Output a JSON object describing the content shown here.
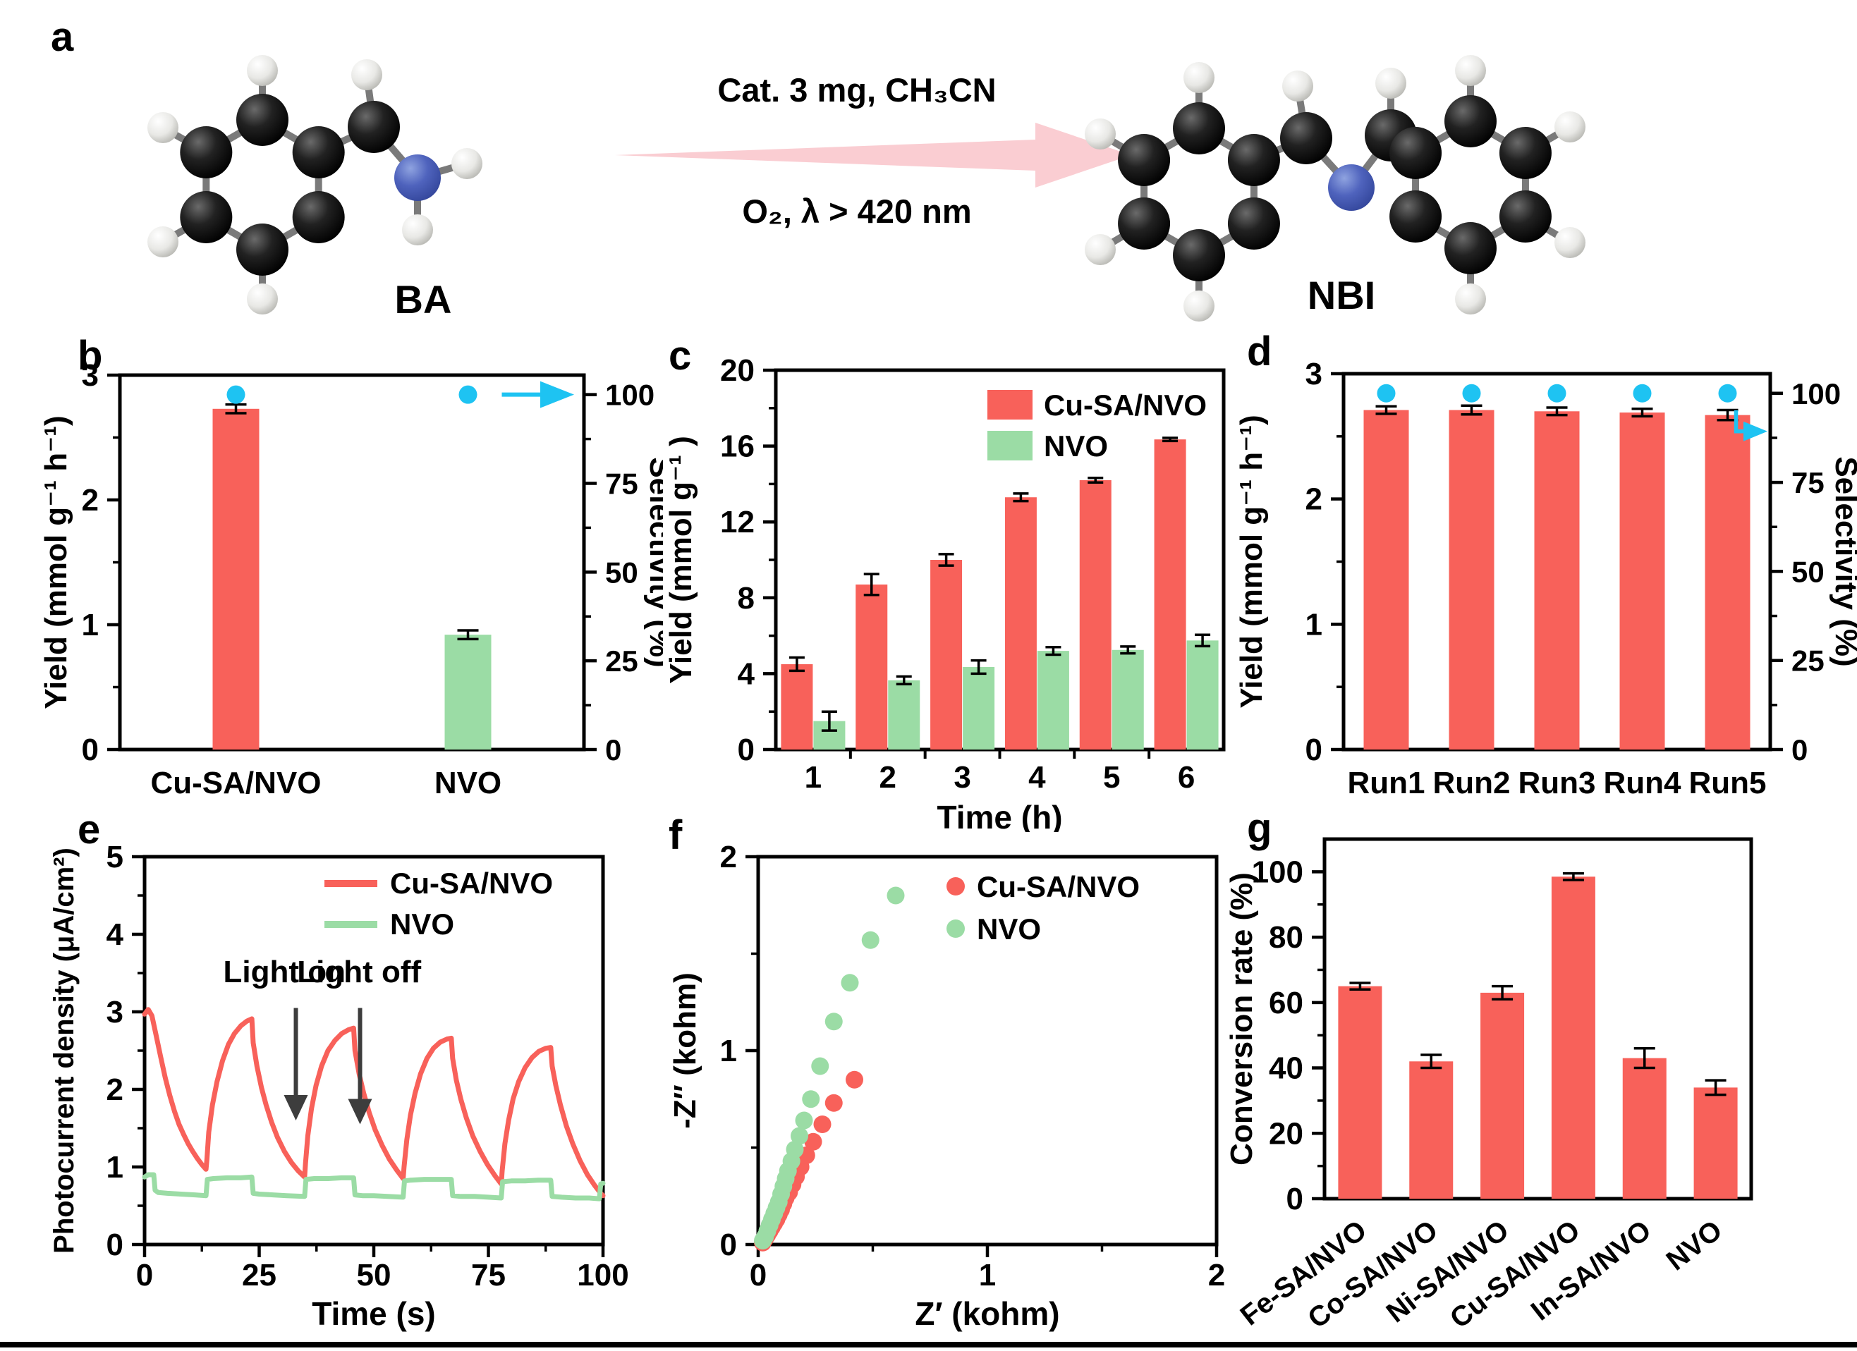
{
  "figure": {
    "panels": {
      "a": "a",
      "b": "b",
      "c": "c",
      "d": "d",
      "e": "e",
      "f": "f",
      "g": "g"
    },
    "panel_a": {
      "condition_top": "Cat. 3 mg,  CH₃CN",
      "condition_bottom": "O₂, λ > 420 nm",
      "reactant_label": "BA",
      "product_label": "NBI",
      "reactant_molecule": "benzylamine ball-and-stick model",
      "product_molecule": "N-benzylidenebenzylamine ball-and-stick model"
    }
  },
  "colors": {
    "red": "#F8615A",
    "green": "#9BDCA5",
    "cyan": "#1EC3F2",
    "arrow_pink": "#FACDD2",
    "annotation": "#3D3D3D",
    "bond": "#7A7A7A",
    "black": "#000000"
  },
  "chart_data": [
    {
      "panel": "b",
      "type": "bar",
      "dual_axis": true,
      "categories": [
        "Cu-SA/NVO",
        "NVO"
      ],
      "series": [
        {
          "name": "Yield",
          "values": [
            2.73,
            0.92
          ],
          "errors": [
            0.035,
            0.035
          ],
          "bar_colors": [
            "red",
            "green"
          ]
        },
        {
          "name": "Selectivity",
          "axis": "right",
          "marker": "circle",
          "color": "cyan",
          "values": [
            100,
            100
          ]
        }
      ],
      "ylabel": "Yield (mmol g⁻¹ h⁻¹)",
      "y2label": "Selectivity (%)",
      "ylim": [
        0,
        3
      ],
      "yticks": [
        0,
        1,
        2,
        3
      ],
      "y2lim": [
        0,
        105.5
      ],
      "y2ticks": [
        0,
        25,
        50,
        75,
        100
      ],
      "right_axis_arrow": "straight"
    },
    {
      "panel": "c",
      "type": "bar",
      "grouped": true,
      "categories": [
        "1",
        "2",
        "3",
        "4",
        "5",
        "6"
      ],
      "series": [
        {
          "name": "Cu-SA/NVO",
          "color": "red",
          "values": [
            4.5,
            8.7,
            10.0,
            13.3,
            14.2,
            16.35
          ],
          "errors": [
            0.35,
            0.55,
            0.3,
            0.2,
            0.12,
            0.08
          ]
        },
        {
          "name": "NVO",
          "color": "green",
          "values": [
            1.5,
            3.65,
            4.35,
            5.2,
            5.25,
            5.75
          ],
          "errors": [
            0.5,
            0.2,
            0.35,
            0.2,
            0.18,
            0.3
          ]
        }
      ],
      "xlabel": "Time (h)",
      "ylabel": "Yield (mmol g⁻¹ )",
      "ylim": [
        0,
        20
      ],
      "yticks": [
        0,
        4,
        8,
        12,
        16,
        20
      ],
      "legend_position": "top-right"
    },
    {
      "panel": "d",
      "type": "bar",
      "dual_axis": true,
      "categories": [
        "Run1",
        "Run2",
        "Run3",
        "Run4",
        "Run5"
      ],
      "series": [
        {
          "name": "Yield",
          "values": [
            2.71,
            2.71,
            2.7,
            2.69,
            2.67
          ],
          "errors": [
            0.03,
            0.035,
            0.03,
            0.03,
            0.04
          ],
          "bar_colors": [
            "red",
            "red",
            "red",
            "red",
            "red"
          ]
        },
        {
          "name": "Selectivity",
          "axis": "right",
          "marker": "circle",
          "color": "cyan",
          "values": [
            100,
            100,
            100,
            100,
            100
          ]
        }
      ],
      "ylabel": "Yield (mmol g⁻¹ h⁻¹)",
      "y2label": "Selectivity (%)",
      "ylim": [
        0,
        3
      ],
      "yticks": [
        0,
        1,
        2,
        3
      ],
      "y2lim": [
        0,
        105.5
      ],
      "y2ticks": [
        0,
        25,
        50,
        75,
        100
      ],
      "right_axis_arrow": "elbow"
    },
    {
      "panel": "e",
      "type": "line",
      "xlabel": "Time (s)",
      "ylabel": "Photocurrent density (μA/cm²)",
      "xlim": [
        0,
        100
      ],
      "ylim": [
        0,
        5
      ],
      "xticks": [
        0,
        25,
        50,
        75,
        100
      ],
      "yticks": [
        0,
        1,
        2,
        3,
        4,
        5
      ],
      "legend_position": "top-right",
      "annotations": [
        {
          "label": "Light on",
          "text_x": 30.5,
          "text_y": 3.38,
          "arrow_x": 33,
          "arrow_y_from": 3.05,
          "arrow_y_to": 1.6
        },
        {
          "label": "Light off",
          "text_x": 46.8,
          "text_y": 3.38,
          "arrow_x": 47,
          "arrow_y_from": 3.05,
          "arrow_y_to": 1.55
        }
      ],
      "series": [
        {
          "name": "Cu-SA/NVO",
          "color": "red",
          "points": [
            [
              0,
              2.97
            ],
            [
              0.8,
              3.03
            ],
            [
              1.6,
              2.95
            ],
            [
              2.5,
              2.7
            ],
            [
              3.5,
              2.42
            ],
            [
              4.5,
              2.15
            ],
            [
              5.5,
              1.92
            ],
            [
              6.5,
              1.72
            ],
            [
              7.5,
              1.55
            ],
            [
              8.5,
              1.42
            ],
            [
              9.5,
              1.3
            ],
            [
              10.5,
              1.2
            ],
            [
              11.5,
              1.11
            ],
            [
              12.5,
              1.03
            ],
            [
              13.4,
              0.97
            ],
            [
              13.6,
              1.1
            ],
            [
              14,
              1.45
            ],
            [
              14.8,
              1.8
            ],
            [
              15.8,
              2.1
            ],
            [
              17,
              2.37
            ],
            [
              18.3,
              2.58
            ],
            [
              19.6,
              2.72
            ],
            [
              21,
              2.82
            ],
            [
              22.3,
              2.88
            ],
            [
              23.4,
              2.91
            ],
            [
              23.7,
              2.6
            ],
            [
              24.5,
              2.3
            ],
            [
              25.5,
              2.02
            ],
            [
              26.5,
              1.8
            ],
            [
              27.7,
              1.58
            ],
            [
              29,
              1.38
            ],
            [
              30.5,
              1.2
            ],
            [
              32,
              1.06
            ],
            [
              33.5,
              0.95
            ],
            [
              34.9,
              0.87
            ],
            [
              35.1,
              1.05
            ],
            [
              35.6,
              1.4
            ],
            [
              36.4,
              1.75
            ],
            [
              37.4,
              2.05
            ],
            [
              38.6,
              2.3
            ],
            [
              40,
              2.5
            ],
            [
              41.5,
              2.63
            ],
            [
              43,
              2.72
            ],
            [
              44.5,
              2.77
            ],
            [
              45.6,
              2.79
            ],
            [
              45.9,
              2.5
            ],
            [
              46.8,
              2.2
            ],
            [
              47.8,
              1.95
            ],
            [
              49,
              1.7
            ],
            [
              50.3,
              1.48
            ],
            [
              51.8,
              1.28
            ],
            [
              53.4,
              1.1
            ],
            [
              55,
              0.96
            ],
            [
              56.4,
              0.85
            ],
            [
              56.6,
              1.0
            ],
            [
              57.2,
              1.35
            ],
            [
              58,
              1.67
            ],
            [
              59,
              1.95
            ],
            [
              60.2,
              2.2
            ],
            [
              61.6,
              2.4
            ],
            [
              63,
              2.53
            ],
            [
              64.5,
              2.61
            ],
            [
              66,
              2.65
            ],
            [
              66.9,
              2.66
            ],
            [
              67.2,
              2.4
            ],
            [
              68,
              2.12
            ],
            [
              69,
              1.87
            ],
            [
              70.2,
              1.63
            ],
            [
              71.6,
              1.4
            ],
            [
              73.2,
              1.2
            ],
            [
              74.8,
              1.03
            ],
            [
              76.4,
              0.89
            ],
            [
              77.8,
              0.78
            ],
            [
              78,
              0.95
            ],
            [
              78.6,
              1.3
            ],
            [
              79.4,
              1.6
            ],
            [
              80.4,
              1.88
            ],
            [
              81.6,
              2.1
            ],
            [
              83,
              2.28
            ],
            [
              84.5,
              2.41
            ],
            [
              86,
              2.49
            ],
            [
              87.5,
              2.53
            ],
            [
              88.6,
              2.54
            ],
            [
              88.9,
              2.3
            ],
            [
              89.7,
              2.05
            ],
            [
              90.7,
              1.8
            ],
            [
              92,
              1.53
            ],
            [
              93.4,
              1.3
            ],
            [
              95,
              1.08
            ],
            [
              96.6,
              0.9
            ],
            [
              98.2,
              0.76
            ],
            [
              99.5,
              0.66
            ],
            [
              100,
              0.63
            ]
          ]
        },
        {
          "name": "NVO",
          "color": "green",
          "points": [
            [
              0,
              0.87
            ],
            [
              0.8,
              0.9
            ],
            [
              2,
              0.9
            ],
            [
              2.3,
              0.7
            ],
            [
              3,
              0.67
            ],
            [
              5,
              0.66
            ],
            [
              8,
              0.65
            ],
            [
              11,
              0.64
            ],
            [
              13.4,
              0.63
            ],
            [
              13.7,
              0.84
            ],
            [
              15,
              0.85
            ],
            [
              18,
              0.86
            ],
            [
              21,
              0.86
            ],
            [
              23.4,
              0.87
            ],
            [
              23.7,
              0.66
            ],
            [
              25,
              0.65
            ],
            [
              28,
              0.64
            ],
            [
              31,
              0.63
            ],
            [
              34.9,
              0.62
            ],
            [
              35.2,
              0.84
            ],
            [
              37,
              0.85
            ],
            [
              40,
              0.85
            ],
            [
              43,
              0.86
            ],
            [
              45.6,
              0.86
            ],
            [
              45.9,
              0.64
            ],
            [
              47.5,
              0.63
            ],
            [
              50,
              0.63
            ],
            [
              53,
              0.62
            ],
            [
              56.4,
              0.61
            ],
            [
              56.7,
              0.82
            ],
            [
              58,
              0.83
            ],
            [
              61,
              0.84
            ],
            [
              64,
              0.84
            ],
            [
              66.9,
              0.84
            ],
            [
              67.2,
              0.63
            ],
            [
              69,
              0.62
            ],
            [
              72,
              0.62
            ],
            [
              75,
              0.61
            ],
            [
              77.8,
              0.6
            ],
            [
              78.1,
              0.81
            ],
            [
              80,
              0.82
            ],
            [
              83,
              0.82
            ],
            [
              86,
              0.83
            ],
            [
              88.6,
              0.83
            ],
            [
              88.9,
              0.62
            ],
            [
              91,
              0.61
            ],
            [
              94,
              0.6
            ],
            [
              97,
              0.6
            ],
            [
              99.2,
              0.59
            ],
            [
              99.5,
              0.78
            ],
            [
              100,
              0.79
            ]
          ]
        }
      ]
    },
    {
      "panel": "f",
      "type": "scatter",
      "xlabel": "Z′ (kohm)",
      "ylabel": "-Z″ (kohm)",
      "xlim": [
        0,
        2
      ],
      "ylim": [
        0,
        2
      ],
      "xticks": [
        0,
        1,
        2
      ],
      "yticks": [
        0,
        1,
        2
      ],
      "legend_position": "top-right",
      "series": [
        {
          "name": "Cu-SA/NVO",
          "color": "red",
          "points": [
            [
              0.02,
              0.01
            ],
            [
              0.03,
              0.03
            ],
            [
              0.04,
              0.05
            ],
            [
              0.05,
              0.07
            ],
            [
              0.06,
              0.09
            ],
            [
              0.07,
              0.11
            ],
            [
              0.08,
              0.13
            ],
            [
              0.09,
              0.155
            ],
            [
              0.1,
              0.18
            ],
            [
              0.11,
              0.21
            ],
            [
              0.12,
              0.24
            ],
            [
              0.135,
              0.27
            ],
            [
              0.15,
              0.31
            ],
            [
              0.165,
              0.35
            ],
            [
              0.185,
              0.4
            ],
            [
              0.21,
              0.46
            ],
            [
              0.24,
              0.53
            ],
            [
              0.28,
              0.62
            ],
            [
              0.33,
              0.73
            ],
            [
              0.42,
              0.85
            ]
          ]
        },
        {
          "name": "NVO",
          "color": "green",
          "points": [
            [
              0.02,
              0.02
            ],
            [
              0.03,
              0.04
            ],
            [
              0.04,
              0.07
            ],
            [
              0.05,
              0.1
            ],
            [
              0.06,
              0.13
            ],
            [
              0.07,
              0.16
            ],
            [
              0.08,
              0.19
            ],
            [
              0.09,
              0.22
            ],
            [
              0.1,
              0.26
            ],
            [
              0.11,
              0.3
            ],
            [
              0.12,
              0.34
            ],
            [
              0.13,
              0.38
            ],
            [
              0.145,
              0.43
            ],
            [
              0.16,
              0.49
            ],
            [
              0.18,
              0.56
            ],
            [
              0.2,
              0.64
            ],
            [
              0.23,
              0.75
            ],
            [
              0.27,
              0.92
            ],
            [
              0.33,
              1.15
            ],
            [
              0.4,
              1.35
            ],
            [
              0.49,
              1.57
            ],
            [
              0.6,
              1.8
            ]
          ]
        }
      ]
    },
    {
      "panel": "g",
      "type": "bar",
      "categories": [
        "Fe-SA/NVO",
        "Co-SA/NVO",
        "Ni-SA/NVO",
        "Cu-SA/NVO",
        "In-SA/NVO",
        "NVO"
      ],
      "series": [
        {
          "name": "Conversion rate",
          "color": "red",
          "values": [
            65,
            42,
            63,
            98.5,
            43,
            34
          ],
          "errors": [
            1,
            2,
            2,
            1,
            3,
            2.2
          ]
        }
      ],
      "ylabel": "Conversion rate (%)",
      "ylim": [
        0,
        110
      ],
      "yticks": [
        0,
        20,
        40,
        60,
        80,
        100
      ],
      "rotated_labels": true
    }
  ]
}
